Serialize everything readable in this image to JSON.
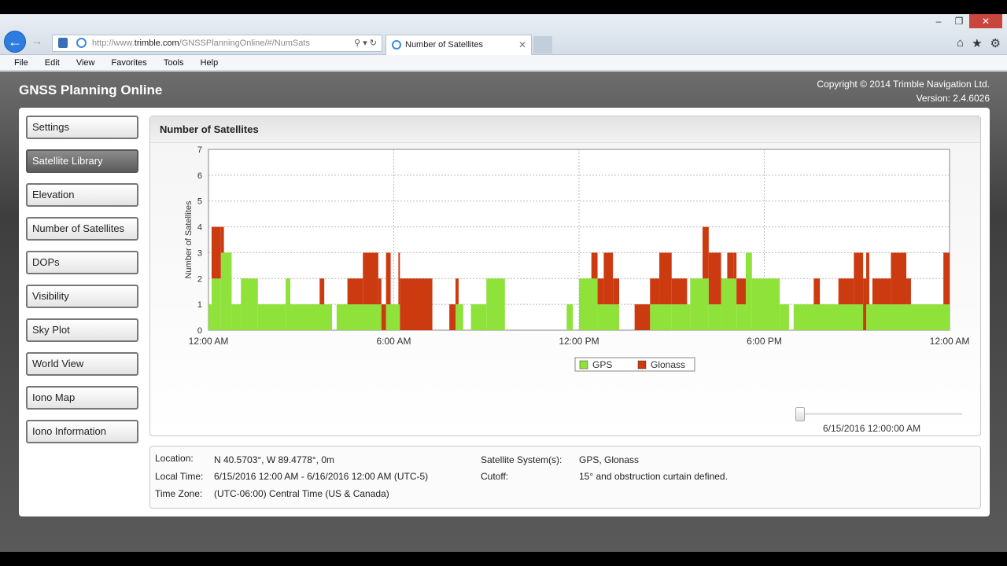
{
  "browser": {
    "address_prefix": "http://www.",
    "address_host": "trimble.com",
    "address_rest": "/GNSSPlanningOnline/#/NumSats",
    "tab_title": "Number of Satellites",
    "menu": [
      "File",
      "Edit",
      "View",
      "Favorites",
      "Tools",
      "Help"
    ]
  },
  "app": {
    "title": "GNSS Planning Online",
    "copyright": "Copyright © 2014 Trimble Navigation Ltd.",
    "version": "Version: 2.4.6026"
  },
  "sidebar": {
    "items": [
      {
        "label": "Settings",
        "active": false
      },
      {
        "label": "Satellite Library",
        "active": true
      },
      {
        "label": "Elevation",
        "active": false
      },
      {
        "label": "Number of Satellites",
        "active": false
      },
      {
        "label": "DOPs",
        "active": false
      },
      {
        "label": "Visibility",
        "active": false
      },
      {
        "label": "Sky Plot",
        "active": false
      },
      {
        "label": "World View",
        "active": false
      },
      {
        "label": "Iono Map",
        "active": false
      },
      {
        "label": "Iono Information",
        "active": false
      }
    ]
  },
  "panel": {
    "title": "Number of Satellites",
    "slider_label": "6/15/2016 12:00:00 AM",
    "slider_position": 0
  },
  "info": {
    "location_label": "Location:",
    "location_value": "N 40.5703°, W 89.4778°, 0m",
    "local_time_label": "Local Time:",
    "local_time_value": "6/15/2016 12:00 AM - 6/16/2016 12:00 AM (UTC-5)",
    "time_zone_label": "Time Zone:",
    "time_zone_value": "(UTC-06:00) Central Time (US & Canada)",
    "systems_label": "Satellite System(s):",
    "systems_value": "GPS, Glonass",
    "cutoff_label": "Cutoff:",
    "cutoff_value": "15° and obstruction curtain defined."
  },
  "chart_data": {
    "type": "area",
    "stacked": true,
    "ylabel": "Number of Satellites",
    "ylim": [
      0,
      7
    ],
    "yticks": [
      0,
      1,
      2,
      3,
      4,
      5,
      6,
      7
    ],
    "xlim": [
      0,
      24
    ],
    "xticks": [
      0,
      6,
      12,
      18,
      24
    ],
    "xtick_labels": [
      "12:00 AM",
      "6:00 AM",
      "12:00 PM",
      "6:00 PM",
      "12:00 AM"
    ],
    "grid": true,
    "legend_position": "bottom-center",
    "colors": {
      "GPS": "#8fe23a",
      "Glonass": "#cc3a10"
    },
    "series": [
      {
        "name": "GPS",
        "segments": [
          [
            0.0,
            0.1,
            1
          ],
          [
            0.1,
            0.4,
            2
          ],
          [
            0.4,
            0.75,
            3
          ],
          [
            0.75,
            1.05,
            1
          ],
          [
            1.05,
            1.6,
            2
          ],
          [
            1.6,
            2.5,
            1
          ],
          [
            2.5,
            2.65,
            2
          ],
          [
            2.65,
            4.0,
            1
          ],
          [
            4.0,
            4.15,
            0
          ],
          [
            4.15,
            5.6,
            1
          ],
          [
            5.6,
            5.75,
            0
          ],
          [
            5.75,
            6.2,
            1
          ],
          [
            6.2,
            8.0,
            0
          ],
          [
            8.0,
            8.25,
            1
          ],
          [
            8.25,
            8.5,
            0
          ],
          [
            8.5,
            9.0,
            1
          ],
          [
            9.0,
            9.6,
            2
          ],
          [
            9.6,
            10.2,
            0
          ],
          [
            10.2,
            11.6,
            0
          ],
          [
            11.6,
            11.8,
            1
          ],
          [
            11.8,
            12.0,
            0
          ],
          [
            12.0,
            12.6,
            2
          ],
          [
            12.6,
            13.3,
            1
          ],
          [
            13.3,
            14.3,
            0
          ],
          [
            14.3,
            15.0,
            1
          ],
          [
            15.0,
            15.6,
            1
          ],
          [
            15.6,
            16.2,
            2
          ],
          [
            16.2,
            16.6,
            1
          ],
          [
            16.6,
            17.1,
            2
          ],
          [
            17.1,
            17.4,
            1
          ],
          [
            17.4,
            17.6,
            3
          ],
          [
            17.6,
            18.5,
            2
          ],
          [
            18.5,
            18.8,
            1
          ],
          [
            18.8,
            18.95,
            0
          ],
          [
            18.95,
            20.0,
            1
          ],
          [
            20.0,
            21.2,
            1
          ],
          [
            21.2,
            21.3,
            0
          ],
          [
            21.3,
            22.6,
            1
          ],
          [
            22.6,
            24.0,
            1
          ]
        ]
      },
      {
        "name": "Glonass",
        "segments": [
          [
            0.1,
            0.4,
            2
          ],
          [
            0.4,
            0.5,
            1
          ],
          [
            0.5,
            0.75,
            0
          ],
          [
            3.6,
            3.75,
            1
          ],
          [
            4.5,
            5.0,
            1
          ],
          [
            5.0,
            5.5,
            2
          ],
          [
            5.5,
            5.75,
            1
          ],
          [
            5.75,
            5.9,
            2
          ],
          [
            5.9,
            7.25,
            0
          ],
          [
            6.15,
            7.25,
            2
          ],
          [
            7.25,
            7.8,
            0
          ],
          [
            7.8,
            8.1,
            1
          ],
          [
            12.4,
            12.8,
            1
          ],
          [
            12.8,
            13.1,
            2
          ],
          [
            13.1,
            13.3,
            1
          ],
          [
            13.3,
            13.8,
            0
          ],
          [
            13.8,
            14.3,
            1
          ],
          [
            14.3,
            14.6,
            1
          ],
          [
            14.6,
            15.0,
            2
          ],
          [
            15.0,
            15.5,
            1
          ],
          [
            15.6,
            16.0,
            0
          ],
          [
            16.0,
            16.6,
            2
          ],
          [
            16.8,
            17.0,
            1
          ],
          [
            17.0,
            17.4,
            1
          ],
          [
            18.3,
            18.5,
            0
          ],
          [
            19.6,
            19.8,
            1
          ],
          [
            20.4,
            20.9,
            1
          ],
          [
            20.9,
            21.3,
            2
          ],
          [
            21.3,
            21.4,
            2
          ],
          [
            21.5,
            22.1,
            1
          ],
          [
            22.1,
            22.6,
            2
          ],
          [
            22.6,
            22.75,
            1
          ],
          [
            22.75,
            22.9,
            0
          ],
          [
            23.8,
            24.0,
            2
          ]
        ]
      }
    ]
  }
}
